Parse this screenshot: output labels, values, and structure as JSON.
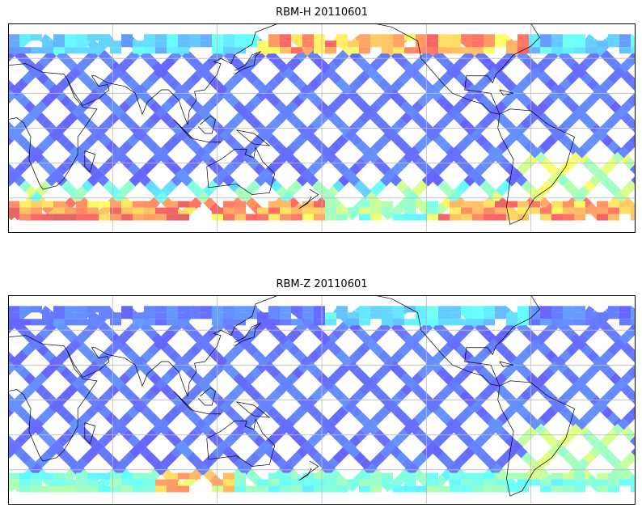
{
  "chart_data": [
    {
      "type": "map",
      "title": "RBM-H 20110601",
      "projection": "PlateCarree",
      "central_longitude": 180,
      "lon_range": [
        0,
        360
      ],
      "lat_range": [
        -60,
        60
      ],
      "grid": true,
      "grid_lons": [
        60,
        120,
        180,
        240,
        300
      ],
      "grid_lats": [
        -40,
        -20,
        0,
        20,
        40
      ],
      "colormap": "jet",
      "variable": "RBM-H"
    },
    {
      "type": "map",
      "title": "RBM-Z 20110601",
      "projection": "PlateCarree",
      "central_longitude": 180,
      "lon_range": [
        0,
        360
      ],
      "lat_range": [
        -60,
        60
      ],
      "grid": true,
      "grid_lons": [
        60,
        120,
        180,
        240,
        300
      ],
      "grid_lats": [
        -40,
        -20,
        0,
        20,
        40
      ],
      "colormap": "jet",
      "variable": "RBM-Z"
    }
  ]
}
